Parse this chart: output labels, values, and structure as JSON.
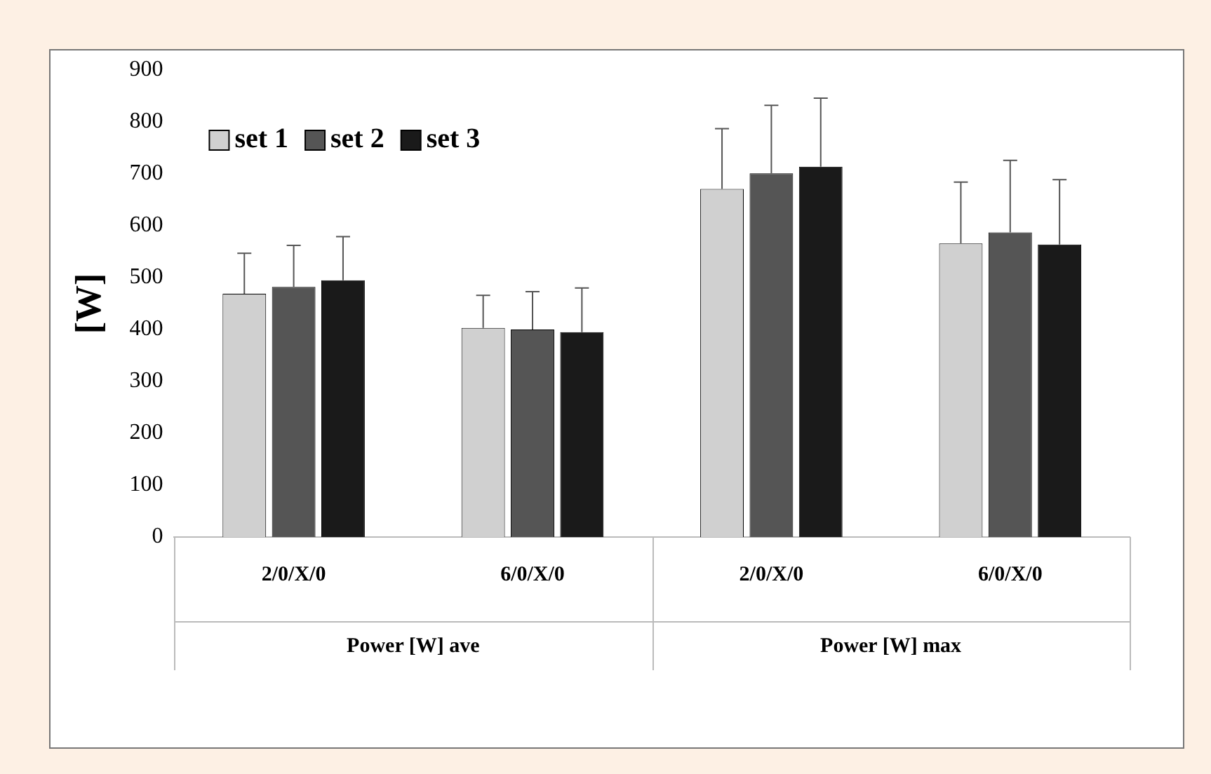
{
  "chart_data": {
    "type": "bar",
    "ylabel": "[W]",
    "categories": [
      "2/0/X/0",
      "6/0/X/0",
      "2/0/X/0",
      "6/0/X/0"
    ],
    "series": [
      {
        "name": "set 1",
        "color": "#d0d0d0",
        "values": [
          469,
          403,
          671,
          566
        ],
        "errors": [
          [
            469,
            547
          ],
          [
            403,
            466
          ],
          [
            671,
            787
          ],
          [
            566,
            684
          ]
        ]
      },
      {
        "name": "set 2",
        "color": "#555555",
        "values": [
          482,
          400,
          701,
          587
        ],
        "errors": [
          [
            482,
            562
          ],
          [
            400,
            473
          ],
          [
            701,
            832
          ],
          [
            587,
            726
          ]
        ]
      },
      {
        "name": "set 3",
        "color": "#1a1a1a",
        "values": [
          495,
          395,
          714,
          564
        ],
        "errors": [
          [
            495,
            579
          ],
          [
            395,
            480
          ],
          [
            714,
            846
          ],
          [
            564,
            689
          ]
        ]
      }
    ],
    "annotations": [
      "Power [W] ave",
      "Power [W] max"
    ],
    "ylim": [
      0,
      900
    ],
    "yticks": [
      0,
      100,
      200,
      300,
      400,
      500,
      600,
      700,
      800,
      900
    ],
    "grid": false,
    "legend": "top left"
  }
}
